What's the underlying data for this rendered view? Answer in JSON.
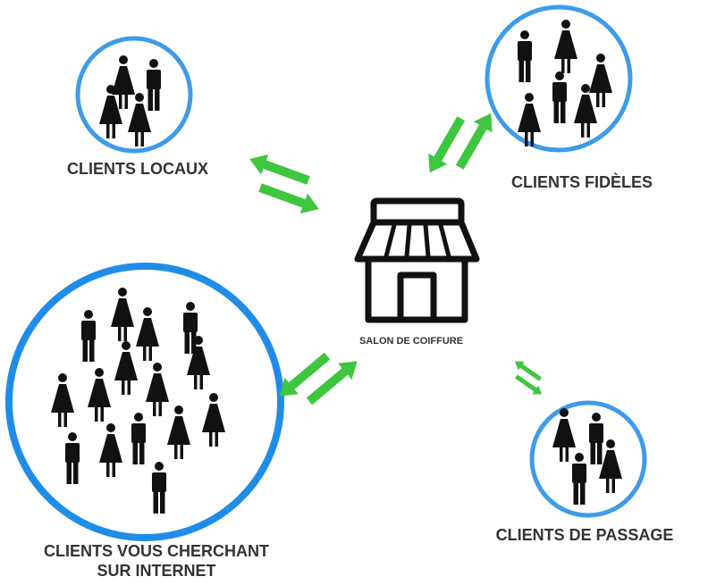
{
  "colors": {
    "ring": "#3f9be8",
    "ring_big": "#1f8de8",
    "arrow": "#3ec63e",
    "person": "#111111",
    "label": "#333333"
  },
  "center": {
    "label": "SALON DE COIFFURE",
    "icon": "shop-icon"
  },
  "groups": [
    {
      "id": "locaux",
      "label_lines": [
        "CLIENTS LOCAUX"
      ]
    },
    {
      "id": "fideles",
      "label_lines": [
        "CLIENTS FIDÈLES"
      ]
    },
    {
      "id": "internet",
      "label_lines": [
        "CLIENTS VOUS CHERCHANT",
        "SUR INTERNET"
      ]
    },
    {
      "id": "passage",
      "label_lines": [
        "CLIENTS DE PASSAGE"
      ]
    }
  ],
  "icons": {
    "person_male": "person-male-icon",
    "person_female": "person-female-icon",
    "exchange_arrows": "two-way-arrow-icon"
  }
}
